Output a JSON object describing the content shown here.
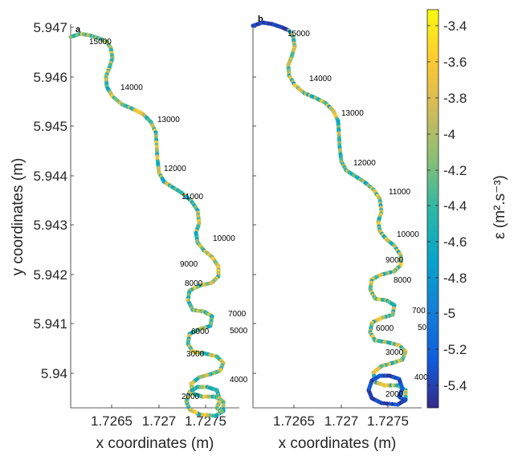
{
  "chart_data": [
    {
      "type": "scatter",
      "panel_label": "a",
      "xlabel": "x coordinates (m)",
      "ylabel": "y coordinates (m)",
      "x_ticks": [
        "1.7265",
        "1.727",
        "1.7275"
      ],
      "y_ticks": [
        "5.947",
        "5.946",
        "5.945",
        "5.944",
        "5.943",
        "5.942",
        "5.941",
        "5.94"
      ],
      "distance_labels": [
        "15000",
        "14000",
        "13000",
        "12000",
        "11000",
        "10000",
        "9000",
        "8000",
        "7000",
        "6000",
        "5000",
        "3000",
        "4000",
        "2000"
      ]
    },
    {
      "type": "scatter",
      "panel_label": "b",
      "xlabel": "x coordinates (m)",
      "x_ticks": [
        "1.7265",
        "1.727",
        "1.7275"
      ],
      "distance_labels": [
        "15000",
        "14000",
        "13000",
        "12000",
        "11000",
        "10000",
        "9000",
        "8000",
        "700",
        "6000",
        "50",
        "3000",
        "400",
        "2000"
      ]
    }
  ],
  "colorbar": {
    "label": "ε (m².s⁻³)",
    "ticks": [
      "-3.4",
      "-3.6",
      "-3.8",
      "-4",
      "-4.2",
      "-4.4",
      "-4.6",
      "-4.8",
      "-5",
      "-5.2",
      "-5.4"
    ],
    "range": [
      -5.55,
      -3.3
    ],
    "colormap": "parula"
  }
}
